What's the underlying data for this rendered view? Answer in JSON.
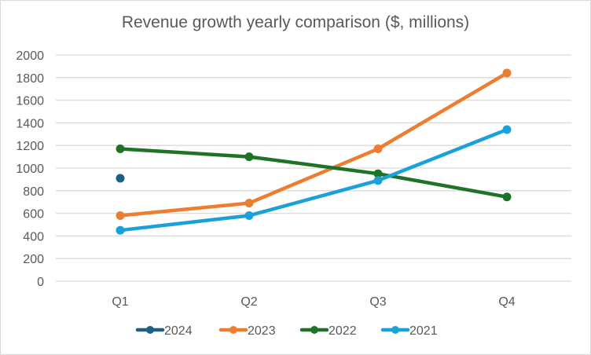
{
  "chart_data": {
    "type": "line",
    "title": "Revenue growth yearly comparison ($, millions)",
    "xlabel": "",
    "ylabel": "",
    "categories": [
      "Q1",
      "Q2",
      "Q3",
      "Q4"
    ],
    "ylim": [
      0,
      2000
    ],
    "yticks": [
      0,
      200,
      400,
      600,
      800,
      1000,
      1200,
      1400,
      1600,
      1800,
      2000
    ],
    "grid": true,
    "legend_position": "bottom",
    "series": [
      {
        "name": "2024",
        "color": "#1f5f86",
        "values": [
          910,
          null,
          null,
          null
        ]
      },
      {
        "name": "2023",
        "color": "#ed7d31",
        "values": [
          580,
          690,
          1170,
          1840
        ]
      },
      {
        "name": "2022",
        "color": "#1e7327",
        "values": [
          1170,
          1100,
          950,
          745
        ]
      },
      {
        "name": "2021",
        "color": "#1ba1d9",
        "values": [
          450,
          580,
          890,
          1340
        ]
      }
    ]
  }
}
